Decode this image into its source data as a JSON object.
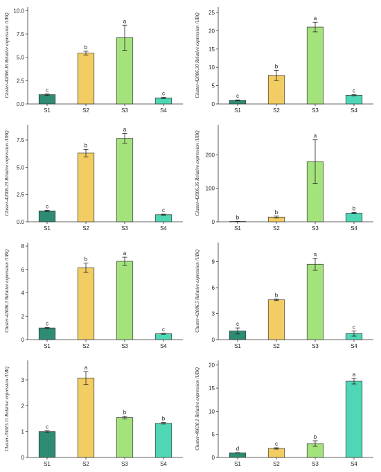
{
  "colors": {
    "S1": "#2e8b74",
    "S2": "#f2cd63",
    "S3": "#a4e27c",
    "S4": "#4fd6b4"
  },
  "chart_data": [
    {
      "type": "bar",
      "categories": [
        "S1",
        "S2",
        "S3",
        "S4"
      ],
      "values": [
        1.0,
        5.45,
        7.1,
        0.65
      ],
      "errors": [
        0.08,
        0.2,
        1.35,
        0.07
      ],
      "letters": [
        "c",
        "b",
        "a",
        "c"
      ],
      "ylim": [
        0,
        10.4
      ],
      "ticks": [
        0.0,
        2.5,
        5.0,
        7.5,
        10.0
      ],
      "tick_labels": [
        "0.0",
        "2.5",
        "5.0",
        "7.5",
        "10.0"
      ],
      "ylabel": "Cluster-42006.16 Relative expression /UBQ"
    },
    {
      "type": "bar",
      "categories": [
        "S1",
        "S2",
        "S3",
        "S4"
      ],
      "values": [
        1.0,
        7.8,
        21.0,
        2.4
      ],
      "errors": [
        0.1,
        1.4,
        1.3,
        0.2
      ],
      "letters": [
        "c",
        "b",
        "a",
        "c"
      ],
      "ylim": [
        0,
        26.5
      ],
      "ticks": [
        0,
        5,
        10,
        15,
        20,
        25
      ],
      "tick_labels": [
        "0",
        "5",
        "10",
        "15",
        "20",
        "25"
      ],
      "ylabel": "Cluster-42006.30 Relative expression /UBQ"
    },
    {
      "type": "bar",
      "categories": [
        "S1",
        "S2",
        "S3",
        "S4"
      ],
      "values": [
        1.0,
        6.3,
        7.65,
        0.65
      ],
      "errors": [
        0.05,
        0.35,
        0.45,
        0.05
      ],
      "letters": [
        "c",
        "b",
        "a",
        "c"
      ],
      "ylim": [
        0,
        8.9
      ],
      "ticks": [
        0.0,
        2.5,
        5.0,
        7.5
      ],
      "tick_labels": [
        "0.0",
        "2.5",
        "5.0",
        "7.5"
      ],
      "ylabel": "Cluster-42006.23 Relative expression /UBQ"
    },
    {
      "type": "bar",
      "categories": [
        "S1",
        "S2",
        "S3",
        "S4"
      ],
      "values": [
        1.0,
        14.0,
        180.0,
        26.0
      ],
      "errors": [
        0.2,
        3.0,
        65.0,
        2.0
      ],
      "letters": [
        "b",
        "b",
        "a",
        "b"
      ],
      "ylim": [
        0,
        290
      ],
      "ticks": [
        0,
        100,
        200
      ],
      "tick_labels": [
        "0",
        "100",
        "200"
      ],
      "ylabel": "Cluster-42006.36 Relative expression /UBQ"
    },
    {
      "type": "bar",
      "categories": [
        "S1",
        "S2",
        "S3",
        "S4"
      ],
      "values": [
        1.0,
        6.15,
        6.7,
        0.5
      ],
      "errors": [
        0.05,
        0.4,
        0.35,
        0.04
      ],
      "letters": [
        "c",
        "b",
        "a",
        "c"
      ],
      "ylim": [
        0,
        8.3
      ],
      "ticks": [
        0,
        2,
        4,
        6,
        8
      ],
      "tick_labels": [
        "0",
        "2",
        "4",
        "6",
        "8"
      ],
      "ylabel": "Cluster-42006.3 Relative expression /UBQ"
    },
    {
      "type": "bar",
      "categories": [
        "S1",
        "S2",
        "S3",
        "S4"
      ],
      "values": [
        1.0,
        4.6,
        8.7,
        0.7
      ],
      "errors": [
        0.35,
        0.1,
        0.7,
        0.3
      ],
      "letters": [
        "c",
        "b",
        "a",
        "c"
      ],
      "ylim": [
        0,
        11.2
      ],
      "ticks": [
        0,
        3,
        6,
        9
      ],
      "tick_labels": [
        "0",
        "3",
        "6",
        "9"
      ],
      "ylabel": "Cluster-42006.5 Relative expression /UBQ"
    },
    {
      "type": "bar",
      "categories": [
        "S1",
        "S2",
        "S3",
        "S4"
      ],
      "values": [
        1.0,
        3.07,
        1.54,
        1.32
      ],
      "errors": [
        0.03,
        0.25,
        0.05,
        0.03
      ],
      "letters": [
        "c",
        "a",
        "b",
        "b"
      ],
      "ylim": [
        0,
        3.75
      ],
      "ticks": [
        0,
        1,
        2,
        3
      ],
      "tick_labels": [
        "0",
        "1",
        "2",
        "3"
      ],
      "ylabel": "Cluster-35815.11 Relative expression /UBQ"
    },
    {
      "type": "bar",
      "categories": [
        "S1",
        "S2",
        "S3",
        "S4"
      ],
      "values": [
        1.0,
        1.95,
        3.0,
        16.5
      ],
      "errors": [
        0.05,
        0.15,
        0.6,
        0.6
      ],
      "letters": [
        "d",
        "c",
        "b",
        "a"
      ],
      "ylim": [
        0,
        21
      ],
      "ticks": [
        0,
        5,
        10,
        15,
        20
      ],
      "tick_labels": [
        "0",
        "5",
        "10",
        "15",
        "20"
      ],
      "ylabel": "Cluster-40030.1 Relative expression /UBQ"
    }
  ]
}
